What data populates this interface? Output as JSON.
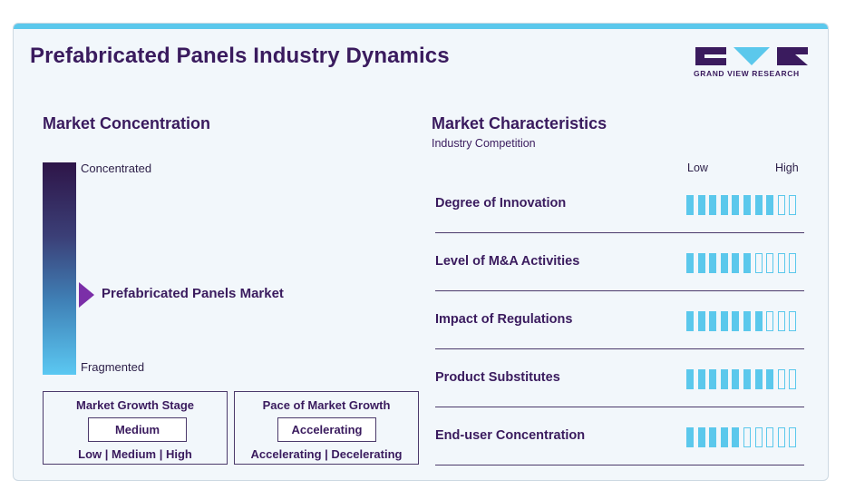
{
  "title": "Prefabricated Panels Industry Dynamics",
  "logo": {
    "text": "GRAND VIEW RESEARCH",
    "colors": {
      "dark": "#3a1b5e",
      "accent": "#5bc8ec"
    }
  },
  "colors": {
    "accent": "#5bc8ec",
    "dark": "#3a1b5e",
    "card_bg": "#f2f7fb"
  },
  "market_concentration": {
    "heading": "Market Concentration",
    "top_label": "Concentrated",
    "bottom_label": "Fragmented",
    "marker_label": "Prefabricated Panels Market",
    "marker_level": 0.63
  },
  "growth_stage": {
    "title": "Market Growth Stage",
    "value": "Medium",
    "scale": "Low | Medium | High"
  },
  "growth_pace": {
    "title": "Pace of Market Growth",
    "value": "Accelerating",
    "scale": "Accelerating | Decelerating"
  },
  "market_characteristics": {
    "heading": "Market Characteristics",
    "subheading": "Industry Competition",
    "low_label": "Low",
    "high_label": "High",
    "total_ticks": 10,
    "rows": [
      {
        "label": "Degree of Innovation",
        "level": 8
      },
      {
        "label": "Level of M&A Activities",
        "level": 6
      },
      {
        "label": "Impact of Regulations",
        "level": 7
      },
      {
        "label": "Product Substitutes",
        "level": 8
      },
      {
        "label": "End-user Concentration",
        "level": 5
      }
    ]
  }
}
